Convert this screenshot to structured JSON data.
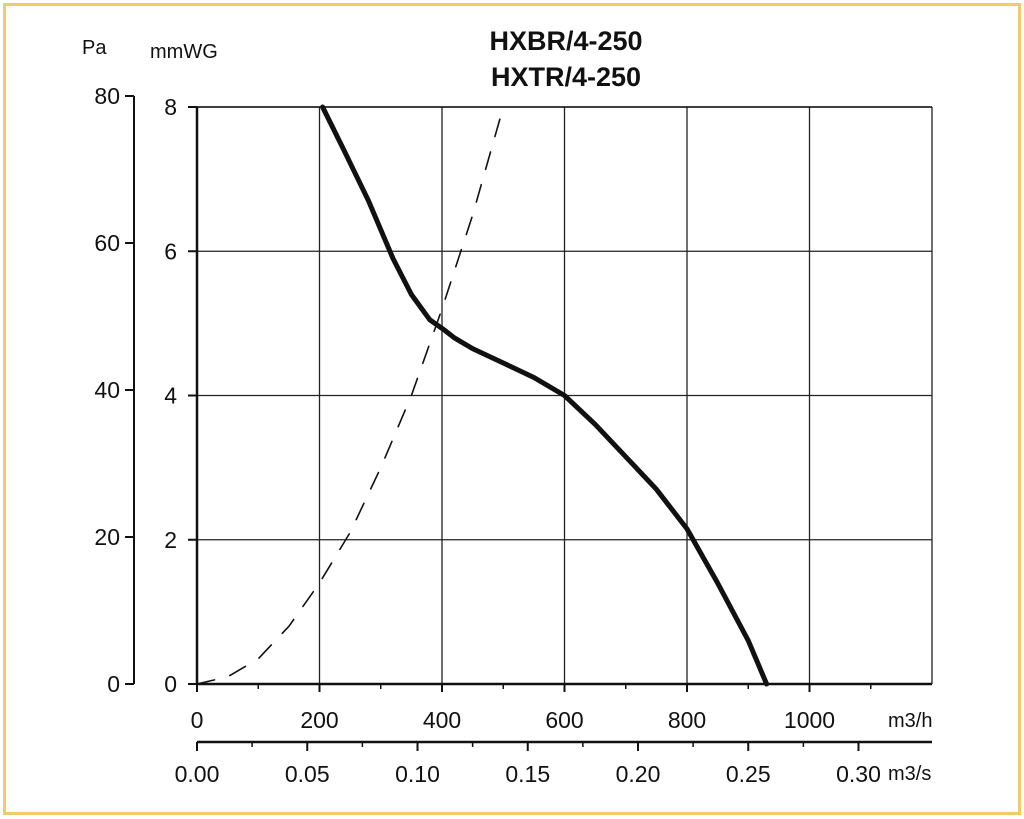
{
  "chart_data": {
    "type": "line",
    "title_lines": [
      "HXBR/4-250",
      "HXTR/4-250"
    ],
    "y_left_unit": "Pa",
    "y_right_unit": "mmWG",
    "x_top_unit": "m3/h",
    "x_bottom_unit": "m3/s",
    "y_pa_ticks": [
      "0",
      "20",
      "40",
      "60",
      "80"
    ],
    "y_mmwg_ticks": [
      "0",
      "2",
      "4",
      "6",
      "8"
    ],
    "x_m3h_ticks": [
      "0",
      "200",
      "400",
      "600",
      "800",
      "1000"
    ],
    "x_m3s_ticks": [
      "0.00",
      "0.05",
      "0.10",
      "0.15",
      "0.20",
      "0.25",
      "0.30"
    ],
    "xlim_m3h": [
      0,
      1200
    ],
    "ylim_mmwg": [
      0,
      8
    ],
    "grid": true,
    "series": [
      {
        "style": "solid",
        "x": [
          205,
          240,
          280,
          320,
          350,
          380,
          405,
          420,
          450,
          500,
          550,
          600,
          650,
          700,
          750,
          800,
          850,
          900,
          930
        ],
        "y": [
          8.0,
          7.4,
          6.7,
          5.9,
          5.4,
          5.05,
          4.9,
          4.8,
          4.65,
          4.45,
          4.25,
          4.0,
          3.6,
          3.15,
          2.7,
          2.15,
          1.4,
          0.6,
          0.0
        ]
      },
      {
        "style": "dashed",
        "x": [
          0,
          50,
          100,
          150,
          200,
          250,
          300,
          350,
          400,
          450,
          500
        ],
        "y": [
          0.0,
          0.1,
          0.35,
          0.8,
          1.4,
          2.1,
          3.0,
          4.0,
          5.2,
          6.5,
          8.0
        ]
      }
    ],
    "colors": {
      "curve": "#111111",
      "grid": "#222222",
      "frame": "#f5c86a"
    }
  }
}
